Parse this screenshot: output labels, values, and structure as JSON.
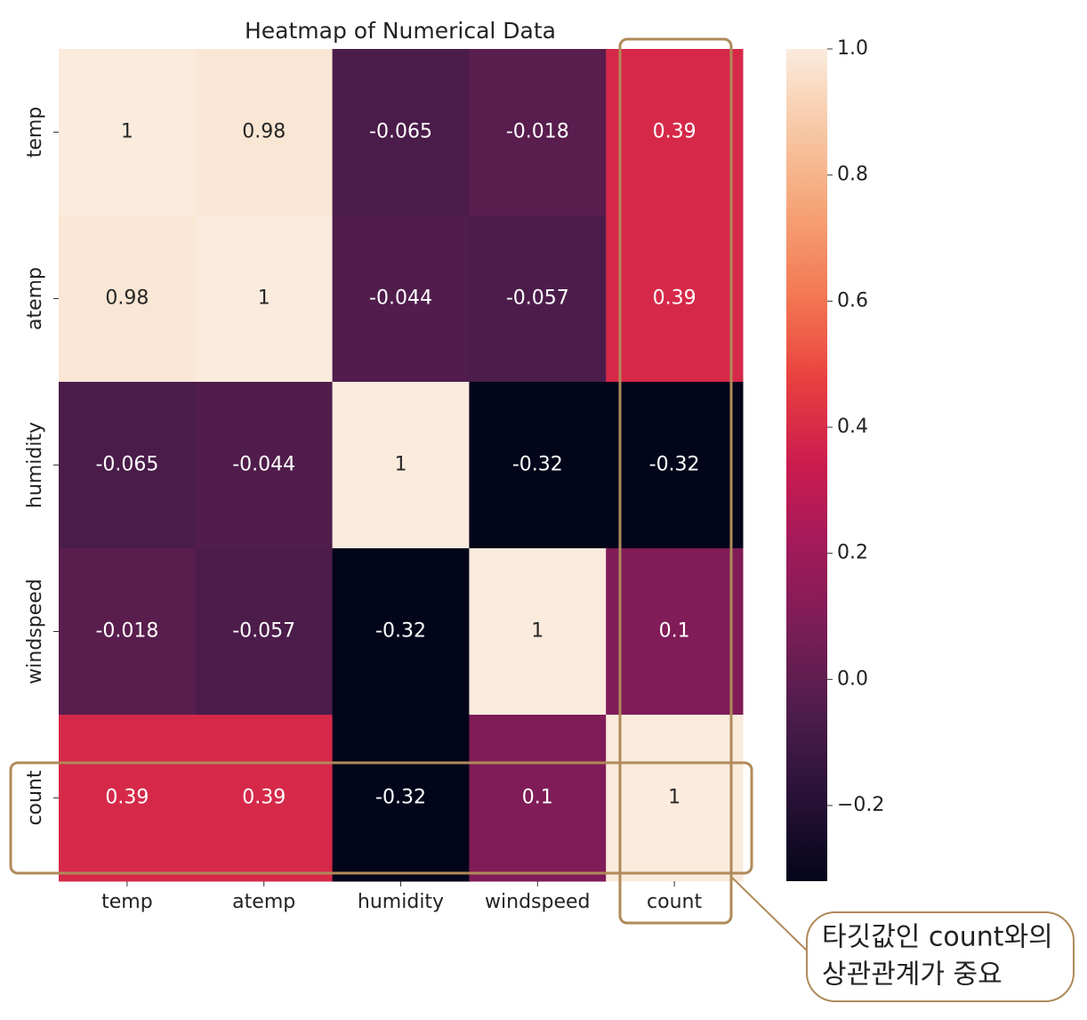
{
  "chart_data": {
    "type": "heatmap",
    "title": "Heatmap of Numerical Data",
    "categories": [
      "temp",
      "atemp",
      "humidity",
      "windspeed",
      "count"
    ],
    "values": [
      [
        1,
        0.98,
        -0.065,
        -0.018,
        0.39
      ],
      [
        0.98,
        1,
        -0.044,
        -0.057,
        0.39
      ],
      [
        -0.065,
        -0.044,
        1,
        -0.32,
        -0.32
      ],
      [
        -0.018,
        -0.057,
        -0.32,
        1,
        0.1
      ],
      [
        0.39,
        0.39,
        -0.32,
        0.1,
        1
      ]
    ],
    "colormap": "rocket",
    "zlim": [
      -0.32,
      1
    ],
    "zticks": [
      {
        "value": 1,
        "label": "1.0"
      },
      0.8,
      0.6,
      0.4,
      0.2,
      {
        "value": 0,
        "label": "0.0"
      },
      {
        "value": -0.2,
        "label": "−0.2"
      }
    ],
    "annotation": [
      "타깃값인 count와의",
      "상관관계가 중요"
    ]
  }
}
